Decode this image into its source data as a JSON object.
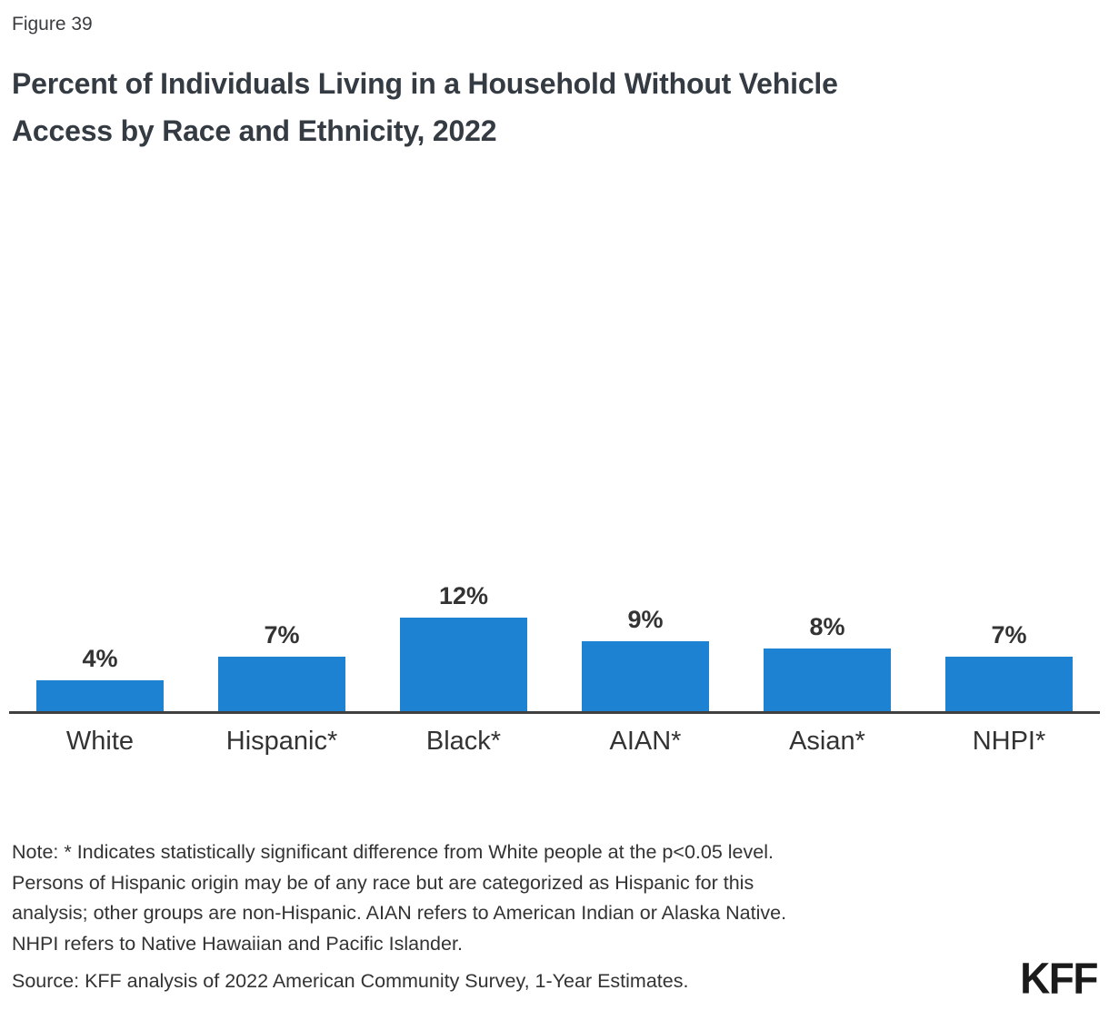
{
  "figure_label": "Figure 39",
  "title_lines": [
    "Percent of Individuals Living in a Household Without Vehicle",
    "Access by Race and Ethnicity, 2022"
  ],
  "chart_data": {
    "type": "bar",
    "title": "Percent of Individuals Living in a Household Without Vehicle Access by Race and Ethnicity, 2022",
    "categories": [
      "White",
      "Hispanic*",
      "Black*",
      "AIAN*",
      "Asian*",
      "NHPI*"
    ],
    "values": [
      4,
      7,
      12,
      9,
      8,
      7
    ],
    "value_labels": [
      "4%",
      "7%",
      "12%",
      "9%",
      "8%",
      "7%"
    ],
    "unit": "percent",
    "xlabel": "",
    "ylabel": "",
    "ylim": [
      0,
      14
    ],
    "grid": false,
    "legend": false,
    "bar_color": "#1E82D3",
    "axis_color": "#404040"
  },
  "note_lines": [
    "Note: * Indicates statistically significant difference from White people at the p<0.05 level.",
    "Persons of Hispanic origin may be of any race but are categorized as Hispanic for this",
    "analysis; other groups are non-Hispanic. AIAN refers to American Indian or Alaska Native.",
    "NHPI refers to Native Hawaiian and Pacific Islander."
  ],
  "source": "Source: KFF analysis of 2022 American Community Survey, 1-Year Estimates.",
  "logo_text": "KFF"
}
